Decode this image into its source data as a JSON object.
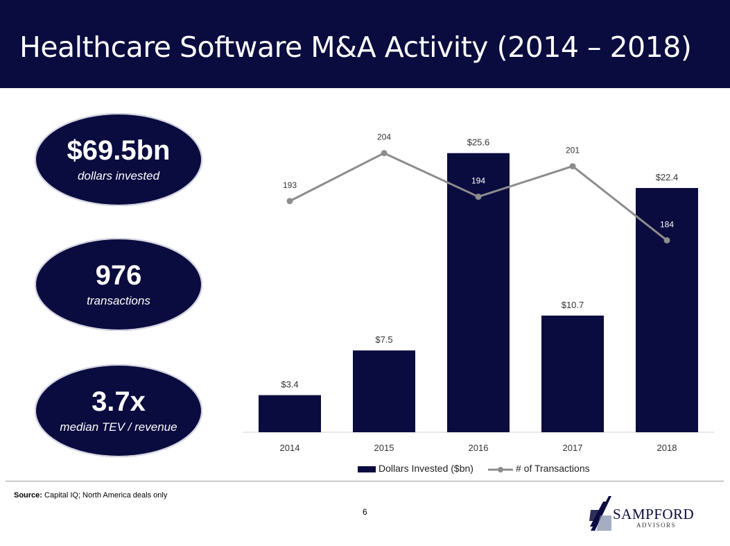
{
  "header": {
    "title": "Healthcare Software M&A Activity (2014 – 2018)"
  },
  "stats": [
    {
      "value": "$69.5bn",
      "caption": "dollars invested"
    },
    {
      "value": "976",
      "caption": "transactions"
    },
    {
      "value": "3.7x",
      "caption": "median TEV / revenue"
    }
  ],
  "chart_data": {
    "type": "bar",
    "categories": [
      "2014",
      "2015",
      "2016",
      "2017",
      "2018"
    ],
    "series": [
      {
        "name": "Dollars Invested ($bn)",
        "type": "bar",
        "values": [
          3.4,
          7.5,
          25.6,
          10.7,
          22.4
        ],
        "labels": [
          "$3.4",
          "$7.5",
          "$25.6",
          "$10.7",
          "$22.4"
        ]
      },
      {
        "name": "# of Transactions",
        "type": "line",
        "values": [
          193,
          204,
          194,
          201,
          184
        ],
        "labels": [
          "193",
          "204",
          "194",
          "201",
          "184"
        ]
      }
    ],
    "title": "",
    "xlabel": "",
    "ylabel": "",
    "ylim": [
      0,
      28
    ],
    "y2lim": [
      140,
      210
    ],
    "grid": false,
    "legend": "bottom",
    "colors": {
      "bar": "#0a0b3e",
      "line": "#8c8c8c"
    }
  },
  "footer": {
    "source_label": "Source:",
    "source_text": " Capital IQ; North America deals only",
    "page_number": "6",
    "logo_name": "SAMPFORD",
    "logo_sub": "ADVISORS"
  }
}
